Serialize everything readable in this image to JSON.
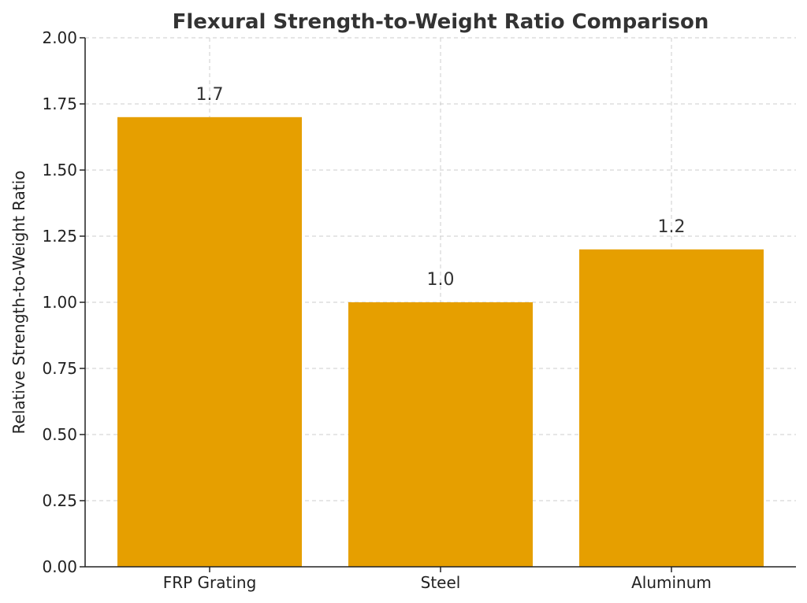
{
  "chart_data": {
    "type": "bar",
    "title": "Flexural Strength-to-Weight Ratio Comparison",
    "xlabel": "",
    "ylabel": "Relative Strength-to-Weight Ratio",
    "categories": [
      "FRP Grating",
      "Steel",
      "Aluminum"
    ],
    "values": [
      1.7,
      1.0,
      1.2
    ],
    "value_labels": [
      "1.7",
      "1.0",
      "1.2"
    ],
    "ylim": [
      0,
      2.0
    ],
    "yticks": [
      "0.00",
      "0.25",
      "0.50",
      "0.75",
      "1.00",
      "1.25",
      "1.50",
      "1.75",
      "2.00"
    ],
    "grid": true,
    "bar_color": "#E69F00"
  }
}
